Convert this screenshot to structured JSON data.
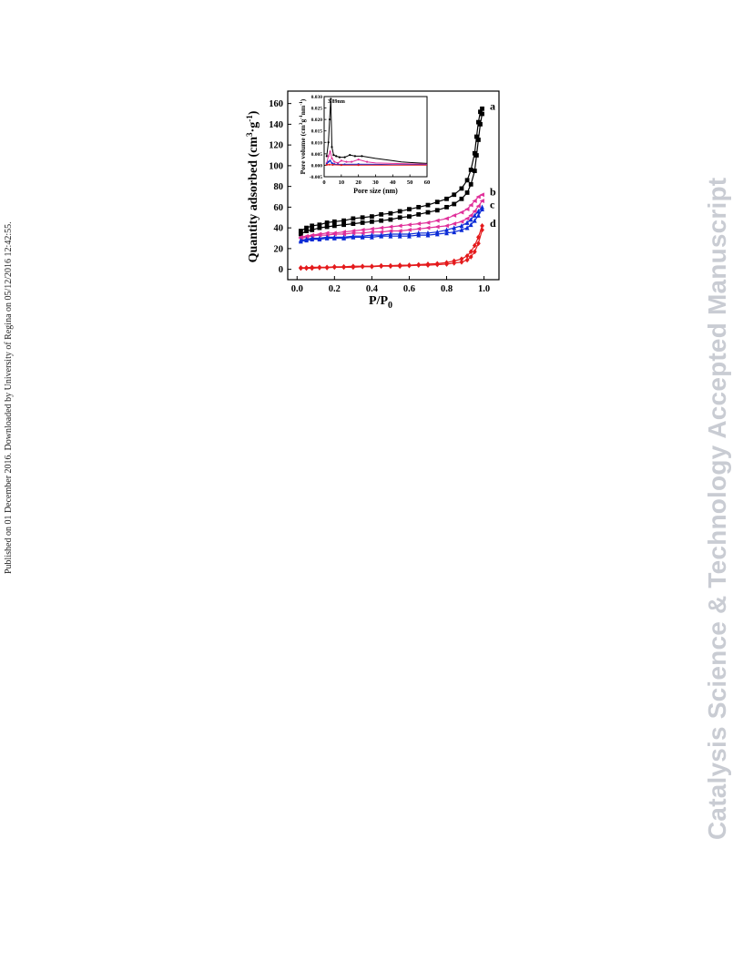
{
  "side_note": "Published on 01 December 2016. Downloaded by University of Regina on 05/12/2016 12:42:55.",
  "watermark": "Catalysis Science & Technology Accepted Manuscript",
  "chart_data": [
    {
      "type": "line",
      "title": "",
      "xlabel": "P/P",
      "xlabel_sub": "0",
      "ylabel": "Quantity adsorbed (cm",
      "ylabel_sup1": "3",
      "ylabel_mid": "·g",
      "ylabel_sup2": "-1",
      "ylabel_end": ")",
      "xlim": [
        -0.05,
        1.08
      ],
      "ylim": [
        -10,
        172
      ],
      "xticks": [
        0.0,
        0.2,
        0.4,
        0.6,
        0.8,
        1.0
      ],
      "xtick_labels": [
        "0.0",
        "0.2",
        "0.4",
        "0.6",
        "0.8",
        "1.0"
      ],
      "yticks": [
        0,
        20,
        40,
        60,
        80,
        100,
        120,
        140,
        160
      ],
      "ytick_labels": [
        "0",
        "20",
        "40",
        "60",
        "80",
        "100",
        "120",
        "140",
        "160"
      ],
      "grid": false,
      "series": [
        {
          "name": "a",
          "color": "#000000",
          "marker": "square",
          "x": [
            0.02,
            0.05,
            0.08,
            0.12,
            0.16,
            0.2,
            0.25,
            0.3,
            0.35,
            0.4,
            0.45,
            0.5,
            0.55,
            0.6,
            0.65,
            0.7,
            0.75,
            0.8,
            0.84,
            0.88,
            0.91,
            0.93,
            0.95,
            0.96,
            0.97,
            0.98,
            0.99
          ],
          "adsorption": [
            34,
            37,
            38,
            40,
            41,
            42,
            43,
            44,
            45,
            46,
            47,
            48,
            50,
            51,
            53,
            55,
            57,
            60,
            63,
            68,
            74,
            82,
            95,
            110,
            125,
            140,
            150
          ],
          "desorption": [
            37,
            40,
            42,
            43,
            45,
            46,
            47,
            49,
            50,
            51,
            53,
            54,
            56,
            58,
            60,
            62,
            65,
            68,
            72,
            78,
            86,
            96,
            112,
            128,
            142,
            152,
            155
          ]
        },
        {
          "name": "b",
          "color": "#e0309a",
          "marker": "triangle-left",
          "x": [
            0.02,
            0.05,
            0.08,
            0.12,
            0.16,
            0.2,
            0.25,
            0.3,
            0.35,
            0.4,
            0.45,
            0.5,
            0.55,
            0.6,
            0.65,
            0.7,
            0.75,
            0.8,
            0.84,
            0.88,
            0.91,
            0.93,
            0.95,
            0.97,
            0.99
          ],
          "adsorption": [
            30,
            31,
            32,
            33,
            33,
            34,
            34,
            35,
            35,
            36,
            36,
            37,
            37,
            38,
            39,
            40,
            41,
            42,
            44,
            46,
            49,
            52,
            56,
            61,
            66
          ],
          "desorption": [
            31,
            32,
            33,
            34,
            35,
            35,
            36,
            37,
            38,
            39,
            40,
            41,
            42,
            43,
            44,
            45,
            47,
            49,
            52,
            55,
            58,
            62,
            66,
            70,
            72
          ]
        },
        {
          "name": "c",
          "color": "#0b2bd6",
          "marker": "triangle-up",
          "x": [
            0.02,
            0.05,
            0.08,
            0.12,
            0.16,
            0.2,
            0.25,
            0.3,
            0.35,
            0.4,
            0.45,
            0.5,
            0.55,
            0.6,
            0.65,
            0.7,
            0.75,
            0.8,
            0.84,
            0.88,
            0.91,
            0.93,
            0.95,
            0.97,
            0.99
          ],
          "adsorption": [
            27,
            28,
            29,
            29,
            30,
            30,
            30,
            31,
            31,
            31,
            32,
            32,
            32,
            32,
            33,
            33,
            34,
            35,
            36,
            38,
            40,
            43,
            47,
            52,
            58
          ],
          "desorption": [
            28,
            29,
            30,
            30,
            31,
            31,
            31,
            32,
            32,
            33,
            33,
            34,
            34,
            34,
            35,
            35,
            36,
            38,
            40,
            42,
            45,
            48,
            52,
            56,
            60
          ]
        },
        {
          "name": "d",
          "color": "#e41a1c",
          "marker": "diamond",
          "x": [
            0.02,
            0.05,
            0.08,
            0.12,
            0.16,
            0.2,
            0.25,
            0.3,
            0.35,
            0.4,
            0.45,
            0.5,
            0.55,
            0.6,
            0.65,
            0.7,
            0.75,
            0.8,
            0.84,
            0.88,
            0.91,
            0.93,
            0.95,
            0.97,
            0.99
          ],
          "adsorption": [
            1,
            1,
            1,
            1.5,
            1.5,
            2,
            2,
            2,
            2.5,
            2.5,
            3,
            3,
            3,
            3.5,
            4,
            4,
            4.5,
            5,
            6,
            7,
            9,
            12,
            17,
            25,
            38
          ],
          "desorption": [
            1.5,
            1.5,
            2,
            2,
            2,
            2.5,
            2.5,
            3,
            3,
            3,
            3.5,
            3.5,
            4,
            4,
            4.5,
            5,
            5.5,
            6.5,
            8,
            10,
            13,
            17,
            23,
            31,
            42
          ]
        }
      ]
    },
    {
      "type": "line",
      "title": "",
      "xlabel": "Pore size (nm)",
      "ylabel": "Pore volume (cm",
      "ylabel_sup1": "3",
      "ylabel_mid": "g",
      "ylabel_sup2": "-1",
      "ylabel_mid2": "nm",
      "ylabel_sup3": "-1",
      "ylabel_end": ")",
      "xlim": [
        0,
        60
      ],
      "ylim": [
        -0.005,
        0.03
      ],
      "xticks": [
        0,
        10,
        20,
        30,
        40,
        50,
        60
      ],
      "xtick_labels": [
        "0",
        "10",
        "20",
        "30",
        "40",
        "50",
        "60"
      ],
      "yticks": [
        -0.005,
        0.0,
        0.005,
        0.01,
        0.015,
        0.02,
        0.025,
        0.03
      ],
      "ytick_labels": [
        "-0.005",
        "0.000",
        "0.005",
        "0.010",
        "0.015",
        "0.020",
        "0.025",
        "0.030"
      ],
      "annotations": [
        {
          "text": "3.89nm",
          "x": 3.89,
          "y": 0.0305
        }
      ],
      "series": [
        {
          "name": "a",
          "color": "#000000",
          "x": [
            1.5,
            2.5,
            3.2,
            3.89,
            4.5,
            5.5,
            7,
            9,
            12,
            15,
            18,
            22,
            26,
            30,
            35,
            40,
            45,
            50,
            55,
            60
          ],
          "y": [
            0.004,
            0.01,
            0.02,
            0.029,
            0.008,
            0.0045,
            0.004,
            0.0035,
            0.0035,
            0.0045,
            0.004,
            0.004,
            0.0035,
            0.003,
            0.0025,
            0.002,
            0.0015,
            0.0012,
            0.001,
            0.0008
          ]
        },
        {
          "name": "b",
          "color": "#e0309a",
          "x": [
            1.5,
            2.5,
            3.5,
            4.5,
            6,
            8,
            10,
            13,
            16,
            20,
            25,
            30,
            40,
            50,
            60
          ],
          "y": [
            0.001,
            0.004,
            0.006,
            0.003,
            0.0015,
            0.001,
            0.002,
            0.0015,
            0.0015,
            0.0025,
            0.0015,
            0.001,
            0.0008,
            0.0006,
            0.0005
          ]
        },
        {
          "name": "c",
          "color": "#0b2bd6",
          "x": [
            1.5,
            2.5,
            3.5,
            4.5,
            6,
            8,
            12,
            20,
            30,
            40,
            50,
            60
          ],
          "y": [
            0.0005,
            0.0015,
            0.002,
            0.001,
            0.0005,
            0.0004,
            0.0004,
            0.0005,
            0.0004,
            0.0003,
            0.0003,
            0.0002
          ]
        },
        {
          "name": "d",
          "color": "#e41a1c",
          "x": [
            1.5,
            3,
            5,
            10,
            20,
            30,
            40,
            50,
            60
          ],
          "y": [
            0.0002,
            0.0003,
            0.0002,
            0.0001,
            0.0001,
            0.0001,
            0.0001,
            0.0001,
            0.0001
          ]
        }
      ]
    }
  ]
}
